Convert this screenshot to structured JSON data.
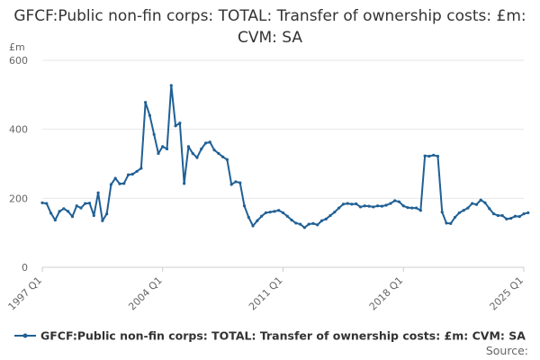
{
  "chart_data": {
    "type": "line",
    "title": "GFCF:Public non-fin corps: TOTAL: Transfer of ownership costs: £m: CVM: SA",
    "ylabel": "£m",
    "xlabel": "",
    "ylim": [
      0,
      600
    ],
    "yticks": [
      0,
      200,
      400,
      600
    ],
    "xticks": [
      "1997 Q1",
      "2004 Q1",
      "2011 Q1",
      "2018 Q1",
      "2025 Q1"
    ],
    "grid": true,
    "legend_position": "bottom",
    "series": [
      {
        "name": "GFCF:Public non-fin corps: TOTAL: Transfer of ownership costs: £m: CVM: SA",
        "color": "#206095",
        "start_quarter": "1997 Q1",
        "values": [
          187,
          185,
          157,
          137,
          162,
          170,
          162,
          147,
          178,
          172,
          185,
          186,
          150,
          216,
          135,
          155,
          240,
          258,
          242,
          243,
          268,
          270,
          278,
          287,
          478,
          440,
          385,
          330,
          350,
          343,
          527,
          410,
          418,
          243,
          350,
          330,
          318,
          343,
          360,
          363,
          340,
          330,
          320,
          312,
          240,
          248,
          245,
          178,
          145,
          120,
          135,
          148,
          158,
          160,
          162,
          165,
          158,
          148,
          137,
          128,
          125,
          115,
          125,
          127,
          123,
          135,
          140,
          150,
          160,
          172,
          183,
          185,
          183,
          184,
          175,
          178,
          177,
          175,
          178,
          177,
          180,
          185,
          193,
          190,
          178,
          173,
          172,
          172,
          165,
          323,
          322,
          325,
          322,
          160,
          128,
          127,
          145,
          158,
          165,
          172,
          185,
          182,
          195,
          187,
          170,
          155,
          150,
          150,
          140,
          142,
          148,
          147,
          155,
          158
        ]
      }
    ]
  },
  "legend": {
    "label": "GFCF:Public non-fin corps: TOTAL: Transfer of ownership costs: £m: CVM: SA"
  },
  "source": {
    "label": "Source:"
  }
}
